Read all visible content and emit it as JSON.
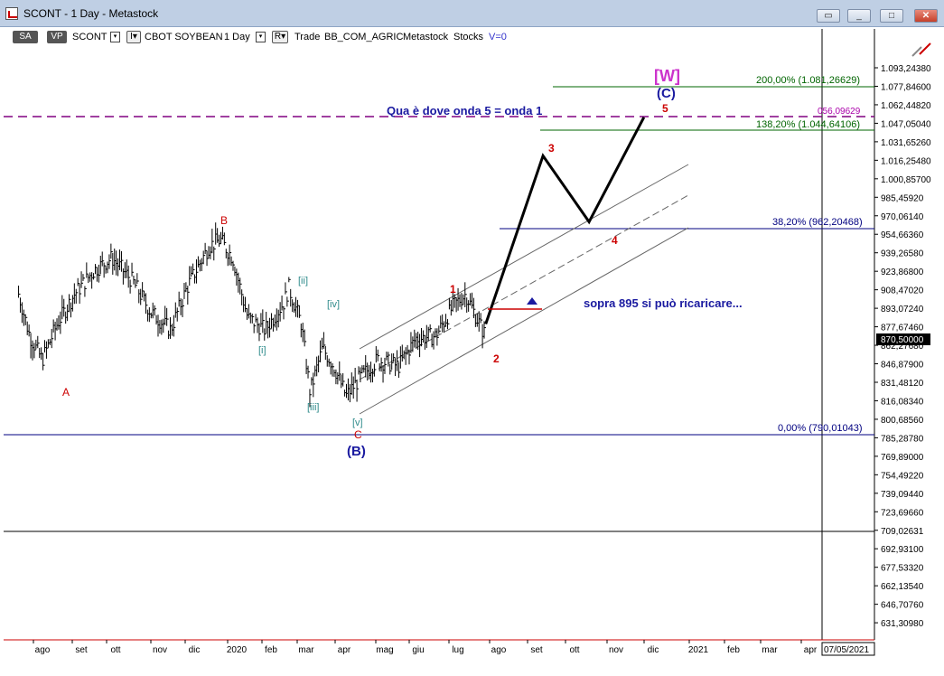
{
  "window": {
    "title": "SCONT - 1 Day - Metastock"
  },
  "toolbar": {
    "sa": "SA",
    "vp": "VP",
    "symbol": "SCONT",
    "iv": "I▾",
    "name": "CBOT SOYBEAN",
    "period": "1 Day",
    "r": "R▾",
    "mode": "Trade",
    "code": "BB_COM_AGRIC",
    "source": "Metastock",
    "type": "Stocks",
    "volume": "V=0"
  },
  "price_axis": {
    "labels": [
      "1.093,24380",
      "1.077,84600",
      "1.062,44820",
      "1.047,05040",
      "1.031,65260",
      "1.016,25480",
      "1.000,85700",
      "985,45920",
      "970,06140",
      "954,66360",
      "939,26580",
      "923,86800",
      "908,47020",
      "893,07240",
      "877,67460",
      "862,27680",
      "846,87900",
      "831,48120",
      "816,08340",
      "800,68560",
      "785,28780",
      "769,89000",
      "754,49220",
      "739,09440",
      "723,69660",
      "709,02631",
      "692,93100",
      "677,53320",
      "662,13540",
      "646,70760",
      "631,30980"
    ],
    "current_price": "870,50000"
  },
  "time_axis": {
    "labels": [
      "ago",
      "set",
      "ott",
      "nov",
      "dic",
      "2020",
      "feb",
      "mar",
      "apr",
      "mag",
      "giu",
      "lug",
      "ago",
      "set",
      "ott",
      "nov",
      "dic",
      "2021",
      "feb",
      "mar",
      "apr"
    ],
    "current_date": "07/05/2021"
  },
  "fib_levels": {
    "l200": "200,00% (1.081,26629)",
    "l138": "138,20% (1.044,64106)",
    "l056": "056,09629",
    "l382": "38,20% (962,20468)",
    "l000": "0,00% (790,01043)"
  },
  "annotations": {
    "w": "[W]",
    "c": "(C)",
    "b": "(B)",
    "note_top": "Qua è dove onda 5 = onda 1",
    "note_mid": "sopra 895 si può ricaricare...",
    "A": "A",
    "B": "B",
    "C": "C",
    "i": "[i]",
    "ii": "[ii]",
    "iii": "[iii]",
    "iv": "[iv]",
    "v": "[v]",
    "w1": "1",
    "w2": "2",
    "w3": "3",
    "w4": "4",
    "w5": "5"
  },
  "chart_data": {
    "type": "line",
    "title": "",
    "price_series": [
      [
        "2019-08-01",
        905
      ],
      [
        "2019-08-10",
        870
      ],
      [
        "2019-08-20",
        850
      ],
      [
        "2019-09-01",
        880
      ],
      [
        "2019-09-15",
        905
      ],
      [
        "2019-10-01",
        925
      ],
      [
        "2019-10-15",
        935
      ],
      [
        "2019-11-01",
        915
      ],
      [
        "2019-11-15",
        890
      ],
      [
        "2019-12-01",
        875
      ],
      [
        "2019-12-15",
        912
      ],
      [
        "2020-01-01",
        945
      ],
      [
        "2020-01-10",
        950
      ],
      [
        "2020-01-20",
        935
      ],
      [
        "2020-02-01",
        885
      ],
      [
        "2020-02-15",
        875
      ],
      [
        "2020-03-01",
        898
      ],
      [
        "2020-03-05",
        910
      ],
      [
        "2020-03-15",
        880
      ],
      [
        "2020-03-22",
        823
      ],
      [
        "2020-04-01",
        860
      ],
      [
        "2020-04-10",
        845
      ],
      [
        "2020-04-20",
        820
      ],
      [
        "2020-05-01",
        835
      ],
      [
        "2020-05-15",
        850
      ],
      [
        "2020-06-01",
        845
      ],
      [
        "2020-06-15",
        868
      ],
      [
        "2020-07-01",
        870
      ],
      [
        "2020-07-15",
        895
      ],
      [
        "2020-07-25",
        905
      ],
      [
        "2020-08-05",
        880
      ],
      [
        "2020-08-10",
        870
      ]
    ],
    "projection": [
      [
        "2020-08-10",
        880
      ],
      [
        "2020-09-25",
        1020
      ],
      [
        "2020-11-01",
        965
      ],
      [
        "2020-12-15",
        1052
      ]
    ],
    "ylim": [
      620,
      1110
    ],
    "log_scale": false,
    "grid": false
  },
  "colors": {
    "navy": "#000080",
    "red": "#cc0000",
    "green": "#006400",
    "magenta": "#cc33cc",
    "teal": "#2e8b8b"
  }
}
